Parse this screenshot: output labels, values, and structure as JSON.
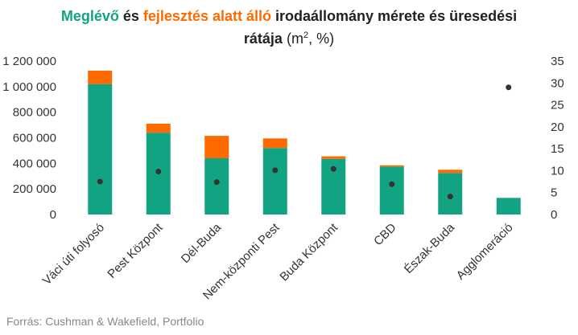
{
  "title": {
    "part1": "Meglévő",
    "part2": " és ",
    "part3": "fejlesztés alatt álló",
    "part4": " irodaállomány mérete és üresedési",
    "line2_bold": "rátája",
    "line2_unit_a": " (m",
    "line2_unit_sup": "2",
    "line2_unit_b": ", %)"
  },
  "colors": {
    "existing": "#12a383",
    "development": "#ff6a00",
    "dot": "#333333"
  },
  "source": "Forrás: Cushman & Wakefield, Portfolio",
  "chart_data": {
    "type": "bar",
    "stacked": true,
    "categories": [
      "Váci úti folyosó",
      "Pest Központ",
      "Dél-Buda",
      "Nem-központi Pest",
      "Buda Központ",
      "CBD",
      "Észak-Buda",
      "Agglomeráció"
    ],
    "series": [
      {
        "name": "Meglévő",
        "axis": "left",
        "values": [
          1020000,
          640000,
          440000,
          520000,
          435000,
          375000,
          325000,
          130000
        ]
      },
      {
        "name": "fejlesztés alatt álló",
        "axis": "left",
        "values": [
          105000,
          70000,
          175000,
          75000,
          20000,
          10000,
          25000,
          0
        ]
      },
      {
        "type": "scatter",
        "axis": "right",
        "values": [
          7.5,
          9.8,
          7.4,
          10.1,
          10.4,
          6.9,
          4.1,
          29.0
        ]
      }
    ],
    "y_left": {
      "min": 0,
      "max": 1200000,
      "ticks": [
        "0",
        "200 000",
        "400 000",
        "600 000",
        "800 000",
        "1 000 000",
        "1 200 000"
      ]
    },
    "y_right": {
      "min": 0,
      "max": 35,
      "ticks": [
        "0",
        "5",
        "10",
        "15",
        "20",
        "25",
        "30",
        "35"
      ]
    },
    "grid": false,
    "legend": "none"
  }
}
